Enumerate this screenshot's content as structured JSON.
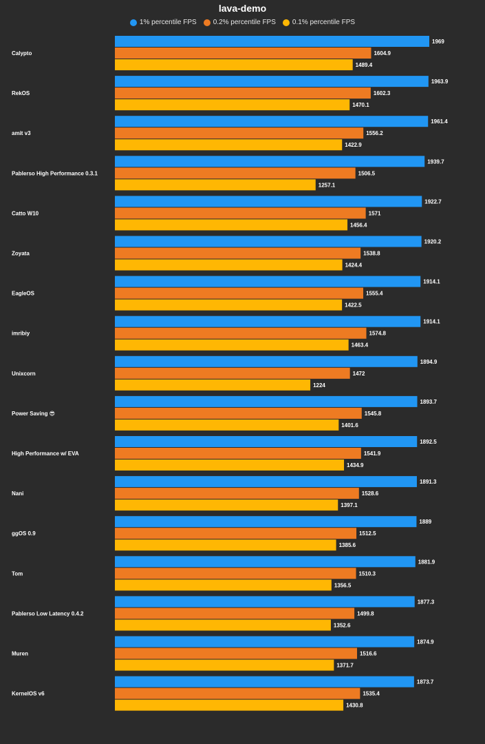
{
  "chart_data": {
    "type": "bar",
    "orientation": "horizontal",
    "title": "lava-demo",
    "legend_position": "top",
    "xlabel": "",
    "ylabel": "",
    "xlim": [
      0,
      2000
    ],
    "grid": false,
    "categories": [
      "Calypto",
      "RekOS",
      "amit v3",
      "Pablerso High Performance 0.3.1",
      "Catto W10",
      "Zoyata",
      "EagleOS",
      "imribiy",
      "Unixcorn",
      "Power Saving 😎",
      "High Performance w/ EVA",
      "Nani",
      "ggOS 0.9",
      "Tom",
      "Pablerso Low Latency 0.4.2",
      "Muren",
      "KernelOS v6"
    ],
    "series": [
      {
        "name": "1% percentile FPS",
        "color": "#2196f3",
        "values": [
          1969,
          1963.9,
          1961.4,
          1939.7,
          1922.7,
          1920.2,
          1914.1,
          1914.1,
          1894.9,
          1893.7,
          1892.5,
          1891.3,
          1889,
          1881.9,
          1877.3,
          1874.9,
          1873.7
        ]
      },
      {
        "name": "0.2% percentile FPS",
        "color": "#ee7b22",
        "values": [
          1604.9,
          1602.3,
          1556.2,
          1506.5,
          1571,
          1538.8,
          1555.4,
          1574.8,
          1472,
          1545.8,
          1541.9,
          1528.6,
          1512.5,
          1510.3,
          1499.8,
          1516.6,
          1535.4
        ]
      },
      {
        "name": "0.1% percentile FPS",
        "color": "#ffb703",
        "values": [
          1489.4,
          1470.1,
          1422.9,
          1257.1,
          1456.4,
          1424.4,
          1422.5,
          1463.4,
          1224,
          1401.6,
          1434.9,
          1397.1,
          1385.6,
          1356.5,
          1352.6,
          1371.7,
          1430.8
        ]
      }
    ]
  }
}
